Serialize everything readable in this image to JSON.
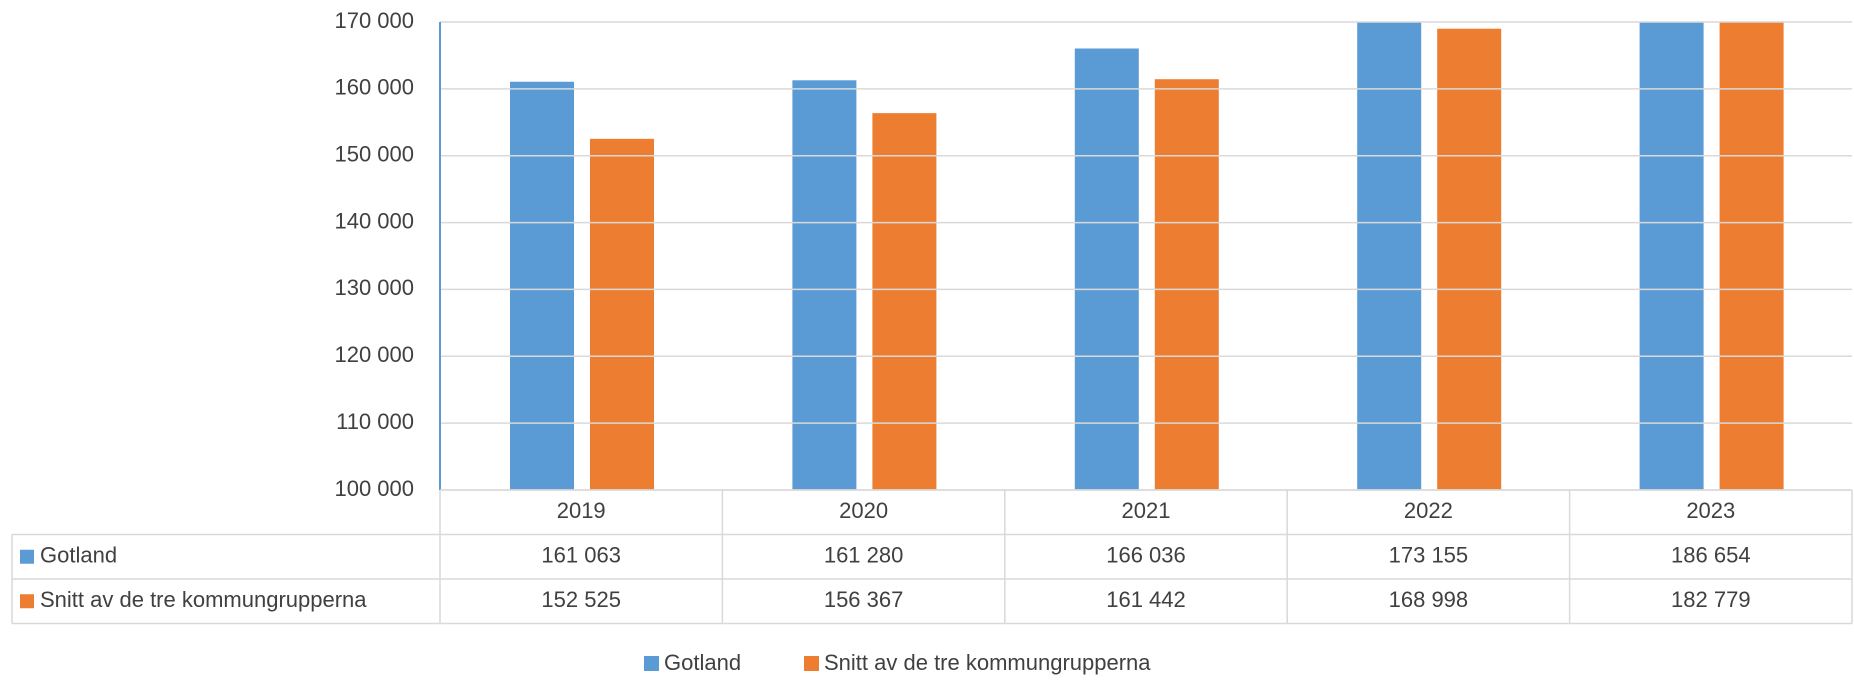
{
  "chart_data": {
    "type": "bar",
    "categories": [
      "2019",
      "2020",
      "2021",
      "2022",
      "2023"
    ],
    "series": [
      {
        "name": "Gotland",
        "color": "#5b9bd5",
        "values": [
          161063,
          161280,
          166036,
          173155,
          186654
        ],
        "value_labels": [
          "161 063",
          "161 280",
          "166 036",
          "173 155",
          "186 654"
        ]
      },
      {
        "name": "Snitt av de tre kommungrupperna",
        "color": "#ed7d31",
        "values": [
          152525,
          156367,
          161442,
          168998,
          182779
        ],
        "value_labels": [
          "152 525",
          "156 367",
          "161 442",
          "168 998",
          "182 779"
        ]
      }
    ],
    "ylim": [
      100000,
      170000
    ],
    "yticks": [
      {
        "value": 100000,
        "label": "100 000"
      },
      {
        "value": 110000,
        "label": "110 000"
      },
      {
        "value": 120000,
        "label": "120 000"
      },
      {
        "value": 130000,
        "label": "130 000"
      },
      {
        "value": 140000,
        "label": "140 000"
      },
      {
        "value": 150000,
        "label": "150 000"
      },
      {
        "value": 160000,
        "label": "160 000"
      },
      {
        "value": 170000,
        "label": "170 000"
      }
    ],
    "grid": true,
    "legend": "bottom",
    "data_table": true
  }
}
